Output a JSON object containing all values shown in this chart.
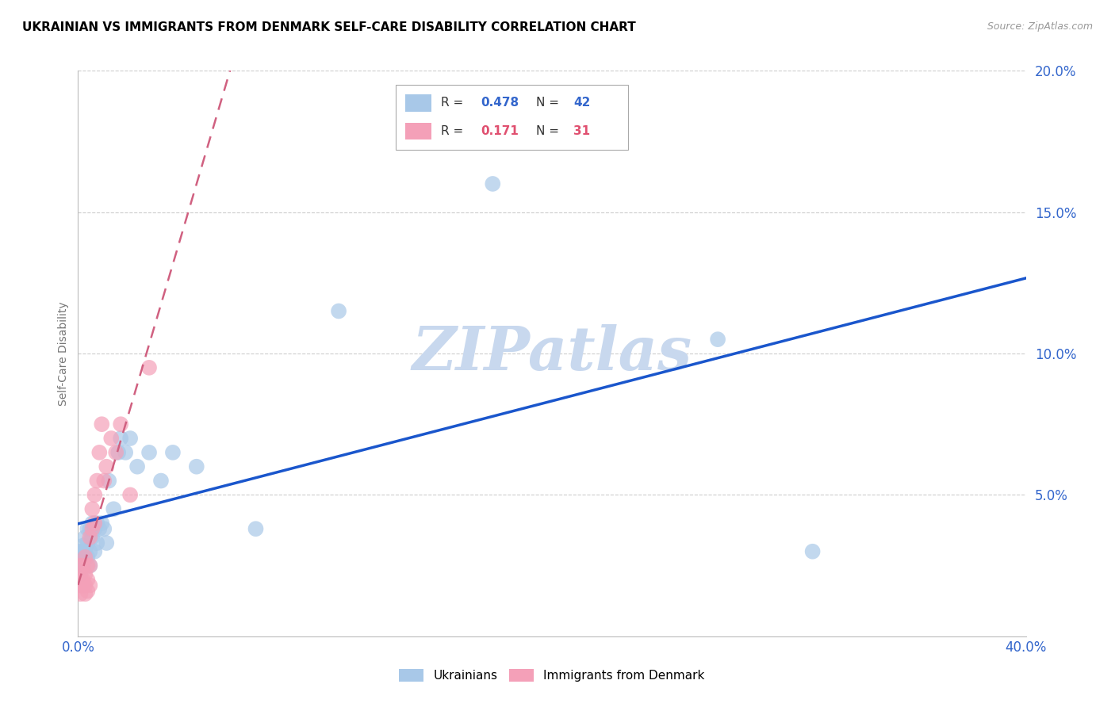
{
  "title": "UKRAINIAN VS IMMIGRANTS FROM DENMARK SELF-CARE DISABILITY CORRELATION CHART",
  "source": "Source: ZipAtlas.com",
  "ylabel": "Self-Care Disability",
  "xlim": [
    0.0,
    0.4
  ],
  "ylim": [
    0.0,
    0.2
  ],
  "xticks": [
    0.0,
    0.05,
    0.1,
    0.15,
    0.2,
    0.25,
    0.3,
    0.35,
    0.4
  ],
  "yticks": [
    0.0,
    0.05,
    0.1,
    0.15,
    0.2
  ],
  "ukrainians_color": "#a8c8e8",
  "denmark_color": "#f4a0b8",
  "trend_blue_color": "#1a56cc",
  "trend_pink_color": "#d06080",
  "watermark_color": "#c8d8ee",
  "ukrainians_x": [
    0.001,
    0.001,
    0.001,
    0.002,
    0.002,
    0.002,
    0.002,
    0.003,
    0.003,
    0.003,
    0.004,
    0.004,
    0.004,
    0.005,
    0.005,
    0.005,
    0.006,
    0.006,
    0.007,
    0.007,
    0.008,
    0.008,
    0.009,
    0.01,
    0.011,
    0.012,
    0.013,
    0.015,
    0.017,
    0.018,
    0.02,
    0.022,
    0.025,
    0.03,
    0.035,
    0.04,
    0.05,
    0.075,
    0.11,
    0.175,
    0.27,
    0.31
  ],
  "ukrainians_y": [
    0.025,
    0.03,
    0.022,
    0.032,
    0.028,
    0.025,
    0.03,
    0.035,
    0.03,
    0.028,
    0.038,
    0.033,
    0.028,
    0.038,
    0.03,
    0.025,
    0.04,
    0.035,
    0.038,
    0.03,
    0.04,
    0.033,
    0.038,
    0.04,
    0.038,
    0.033,
    0.055,
    0.045,
    0.065,
    0.07,
    0.065,
    0.07,
    0.06,
    0.065,
    0.055,
    0.065,
    0.06,
    0.038,
    0.115,
    0.16,
    0.105,
    0.03
  ],
  "denmark_x": [
    0.001,
    0.001,
    0.001,
    0.001,
    0.002,
    0.002,
    0.002,
    0.003,
    0.003,
    0.003,
    0.003,
    0.004,
    0.004,
    0.004,
    0.005,
    0.005,
    0.005,
    0.006,
    0.006,
    0.007,
    0.007,
    0.008,
    0.009,
    0.01,
    0.011,
    0.012,
    0.014,
    0.016,
    0.018,
    0.022,
    0.03
  ],
  "denmark_y": [
    0.02,
    0.025,
    0.018,
    0.015,
    0.025,
    0.02,
    0.018,
    0.028,
    0.022,
    0.018,
    0.015,
    0.025,
    0.02,
    0.016,
    0.035,
    0.025,
    0.018,
    0.045,
    0.038,
    0.05,
    0.04,
    0.055,
    0.065,
    0.075,
    0.055,
    0.06,
    0.07,
    0.065,
    0.075,
    0.05,
    0.095
  ]
}
